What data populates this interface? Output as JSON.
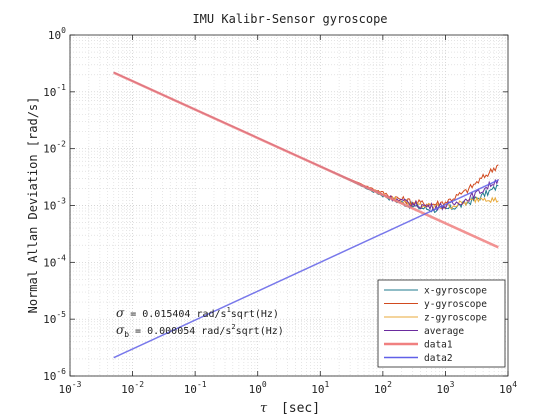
{
  "chart_data": {
    "type": "line",
    "title": "IMU Kalibr-Sensor gyroscope",
    "xlabel_symbol": "τ",
    "xlabel_unit": "[sec]",
    "ylabel": "Normal Allan Deviation [rad/s]",
    "xscale": "log",
    "yscale": "log",
    "xlim": [
      0.001,
      10000
    ],
    "ylim": [
      1e-06,
      1
    ],
    "grid": true,
    "minor_grid": true,
    "x_ticks": [
      {
        "value": 0.001,
        "base": "10",
        "exp": "-3"
      },
      {
        "value": 0.01,
        "base": "10",
        "exp": "-2"
      },
      {
        "value": 0.1,
        "base": "10",
        "exp": "-1"
      },
      {
        "value": 1,
        "base": "10",
        "exp": "0"
      },
      {
        "value": 10,
        "base": "10",
        "exp": "1"
      },
      {
        "value": 100,
        "base": "10",
        "exp": "2"
      },
      {
        "value": 1000,
        "base": "10",
        "exp": "3"
      },
      {
        "value": 10000,
        "base": "10",
        "exp": "4"
      }
    ],
    "y_ticks": [
      {
        "value": 1,
        "base": "10",
        "exp": "0"
      },
      {
        "value": 0.1,
        "base": "10",
        "exp": "-1"
      },
      {
        "value": 0.01,
        "base": "10",
        "exp": "-2"
      },
      {
        "value": 0.001,
        "base": "10",
        "exp": "-3"
      },
      {
        "value": 0.0001,
        "base": "10",
        "exp": "-4"
      },
      {
        "value": 1e-05,
        "base": "10",
        "exp": "-5"
      },
      {
        "value": 1e-06,
        "base": "10",
        "exp": "-6"
      }
    ],
    "series": [
      {
        "name": "x-gyroscope",
        "color": "#1f7a8c",
        "width": 1,
        "x": [
          0.005,
          0.05,
          0.5,
          5,
          20,
          60,
          150,
          300,
          600,
          1000,
          2000,
          4000,
          7000
        ],
        "y": [
          0.22,
          0.069,
          0.022,
          0.0069,
          0.0034,
          0.0019,
          0.00125,
          0.00097,
          0.00085,
          0.00085,
          0.00105,
          0.0015,
          0.0022
        ]
      },
      {
        "name": "y-gyroscope",
        "color": "#d14a1f",
        "width": 1,
        "x": [
          0.005,
          0.05,
          0.5,
          5,
          20,
          60,
          150,
          300,
          600,
          1000,
          2000,
          4000,
          7000
        ],
        "y": [
          0.22,
          0.069,
          0.022,
          0.0069,
          0.0035,
          0.0021,
          0.0014,
          0.00115,
          0.00105,
          0.00115,
          0.0017,
          0.0031,
          0.0052
        ]
      },
      {
        "name": "z-gyroscope",
        "color": "#e8a93a",
        "width": 1,
        "x": [
          0.005,
          0.05,
          0.5,
          5,
          20,
          60,
          150,
          300,
          600,
          1000,
          2000,
          4000,
          7000
        ],
        "y": [
          0.22,
          0.069,
          0.022,
          0.0069,
          0.0035,
          0.002,
          0.0013,
          0.00105,
          0.00095,
          0.00095,
          0.0011,
          0.0014,
          0.0012
        ]
      },
      {
        "name": "average",
        "color": "#6a2b9e",
        "width": 1,
        "x": [
          0.005,
          0.05,
          0.5,
          5,
          20,
          60,
          150,
          300,
          600,
          1000,
          2000,
          4000,
          7000
        ],
        "y": [
          0.22,
          0.069,
          0.022,
          0.0069,
          0.0035,
          0.002,
          0.0013,
          0.00105,
          0.00095,
          0.00098,
          0.00122,
          0.0019,
          0.0029
        ]
      },
      {
        "name": "data1",
        "color": "#f08080",
        "width": 2.5,
        "x": [
          0.005,
          7000
        ],
        "y": [
          0.2178,
          0.000184
        ]
      },
      {
        "name": "data2",
        "color": "#6060e8",
        "width": 1.5,
        "x": [
          0.005,
          7000
        ],
        "y": [
          2.1e-06,
          0.0028
        ]
      }
    ],
    "legend_location": "bottom-right",
    "annotations": [
      {
        "symbol": "σ",
        "sub": "",
        "text1": " = 0.015404 rad/s",
        "sup": "1",
        "text2": "sqrt(Hz)"
      },
      {
        "symbol": "σ",
        "sub": "b",
        "text1": " = 0.000054 rad/s",
        "sup": "2",
        "text2": "sqrt(Hz)"
      }
    ]
  }
}
